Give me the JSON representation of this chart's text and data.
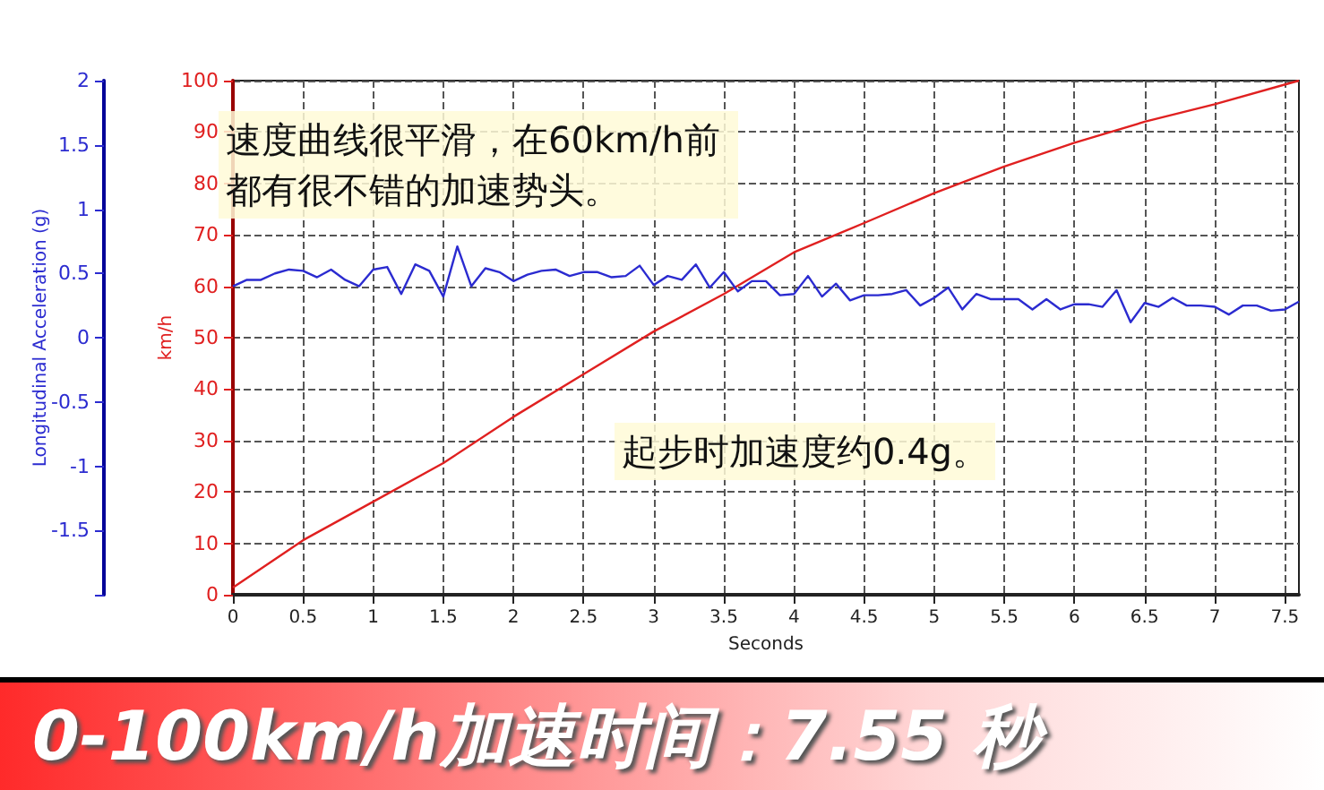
{
  "chart_data": {
    "type": "line",
    "title": "0-100km/h加速时间：7.55 秒",
    "xlabel": "Seconds",
    "ylabel": "km/h",
    "y2label": "Longitudinal Acceleration (g)",
    "annotations": [
      "速度曲线很平滑，在60km/h前都有很不错的加速势头。",
      "起步时加速度约0.4g。"
    ],
    "xlim": [
      0,
      7.6
    ],
    "xticks": [
      0,
      0.5,
      1,
      1.5,
      2,
      2.5,
      3,
      3.5,
      4,
      4.5,
      5,
      5.5,
      6,
      6.5,
      7,
      7.5
    ],
    "ylim": [
      0,
      100
    ],
    "yticks": [
      0,
      10,
      20,
      30,
      40,
      50,
      60,
      70,
      80,
      90,
      100
    ],
    "y2lim": [
      -2,
      2
    ],
    "y2ticks": [
      {
        "value": -2,
        "label": null
      },
      -1.5,
      -1,
      -0.5,
      0,
      0.5,
      1,
      1.5,
      2
    ],
    "grid": true,
    "marker": "none",
    "line_style": "solid",
    "series": [
      {
        "color": "#e02020",
        "x": [
          0,
          0.5,
          1,
          1.5,
          2,
          2.5,
          3,
          3.5,
          4,
          4.5,
          5,
          5.5,
          6,
          6.5,
          7,
          7.6
        ],
        "values": [
          1.4,
          10.6,
          18.1,
          25.6,
          34.6,
          42.9,
          51.2,
          58.5,
          66.6,
          72.3,
          78.1,
          83.3,
          87.9,
          92,
          95.4,
          100
        ]
      },
      {
        "color": "#2b2bd0",
        "axis": "y2",
        "x": [
          0,
          0.1,
          0.2,
          0.3,
          0.4,
          0.5,
          0.6,
          0.7,
          0.8,
          0.9,
          1,
          1.1,
          1.2,
          1.3,
          1.4,
          1.5,
          1.6,
          1.7,
          1.8,
          1.9,
          2,
          2.1,
          2.2,
          2.3,
          2.4,
          2.5,
          2.6,
          2.7,
          2.8,
          2.9,
          3,
          3.1,
          3.2,
          3.3,
          3.4,
          3.5,
          3.6,
          3.7,
          3.8,
          3.9,
          4,
          4.1,
          4.2,
          4.3,
          4.4,
          4.5,
          4.6,
          4.7,
          4.8,
          4.9,
          5,
          5.1,
          5.2,
          5.3,
          5.4,
          5.5,
          5.6,
          5.7,
          5.8,
          5.9,
          6,
          6.1,
          6.2,
          6.3,
          6.4,
          6.5,
          6.6,
          6.7,
          6.8,
          6.9,
          7,
          7.1,
          7.2,
          7.3,
          7.4,
          7.5,
          7.6
        ],
        "values": [
          0.4,
          0.45,
          0.45,
          0.5,
          0.53,
          0.52,
          0.47,
          0.53,
          0.45,
          0.4,
          0.53,
          0.55,
          0.34,
          0.57,
          0.52,
          0.32,
          0.71,
          0.4,
          0.54,
          0.51,
          0.44,
          0.49,
          0.52,
          0.53,
          0.48,
          0.51,
          0.51,
          0.47,
          0.48,
          0.56,
          0.41,
          0.48,
          0.45,
          0.57,
          0.39,
          0.51,
          0.36,
          0.44,
          0.44,
          0.33,
          0.34,
          0.48,
          0.32,
          0.42,
          0.29,
          0.33,
          0.33,
          0.34,
          0.37,
          0.25,
          0.31,
          0.39,
          0.22,
          0.34,
          0.3,
          0.3,
          0.3,
          0.22,
          0.3,
          0.22,
          0.26,
          0.26,
          0.24,
          0.37,
          0.12,
          0.27,
          0.24,
          0.31,
          0.25,
          0.25,
          0.24,
          0.18,
          0.25,
          0.25,
          0.21,
          0.22,
          0.28
        ]
      }
    ]
  }
}
